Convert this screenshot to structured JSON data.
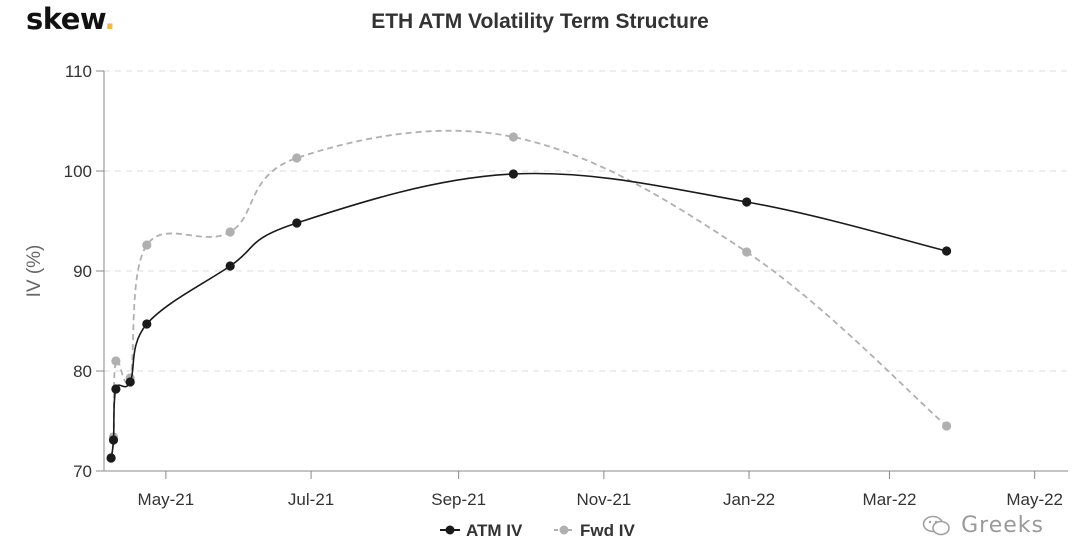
{
  "brand": {
    "name": "skew",
    "dot": "."
  },
  "watermark": "Greeks",
  "chart_data": {
    "type": "line",
    "title": "ETH ATM Volatility Term Structure",
    "xlabel": "",
    "ylabel": "IV (%)",
    "ylim": [
      70,
      110
    ],
    "yticks": [
      70,
      80,
      90,
      100,
      110
    ],
    "xlim": [
      "2021-04-05",
      "2022-05-15"
    ],
    "xticks": [
      {
        "date": "2021-05-01",
        "label": "May-21"
      },
      {
        "date": "2021-07-01",
        "label": "Jul-21"
      },
      {
        "date": "2021-09-01",
        "label": "Sep-21"
      },
      {
        "date": "2021-11-01",
        "label": "Nov-21"
      },
      {
        "date": "2022-01-01",
        "label": "Jan-22"
      },
      {
        "date": "2022-03-01",
        "label": "Mar-22"
      },
      {
        "date": "2022-05-01",
        "label": "May-22"
      }
    ],
    "grid": "horizontal",
    "legend": "bottom-center",
    "series": [
      {
        "name": "ATM IV",
        "color": "#1a1a1a",
        "style": "solid",
        "points": [
          {
            "x": "2021-04-08",
            "y": 71.3
          },
          {
            "x": "2021-04-09",
            "y": 73.1
          },
          {
            "x": "2021-04-10",
            "y": 78.2
          },
          {
            "x": "2021-04-16",
            "y": 78.9
          },
          {
            "x": "2021-04-23",
            "y": 84.7
          },
          {
            "x": "2021-05-28",
            "y": 90.5
          },
          {
            "x": "2021-06-25",
            "y": 94.8
          },
          {
            "x": "2021-09-24",
            "y": 99.7
          },
          {
            "x": "2021-12-31",
            "y": 96.9
          },
          {
            "x": "2022-03-25",
            "y": 92.0
          }
        ]
      },
      {
        "name": "Fwd IV",
        "color": "#b0b0b0",
        "style": "dashed",
        "points": [
          {
            "x": "2021-04-08",
            "y": 71.3
          },
          {
            "x": "2021-04-09",
            "y": 73.4
          },
          {
            "x": "2021-04-10",
            "y": 81.0
          },
          {
            "x": "2021-04-16",
            "y": 79.3
          },
          {
            "x": "2021-04-23",
            "y": 92.6
          },
          {
            "x": "2021-05-28",
            "y": 93.9
          },
          {
            "x": "2021-06-25",
            "y": 101.3
          },
          {
            "x": "2021-09-24",
            "y": 103.4
          },
          {
            "x": "2021-12-31",
            "y": 91.9
          },
          {
            "x": "2022-03-25",
            "y": 74.5
          }
        ]
      }
    ]
  }
}
